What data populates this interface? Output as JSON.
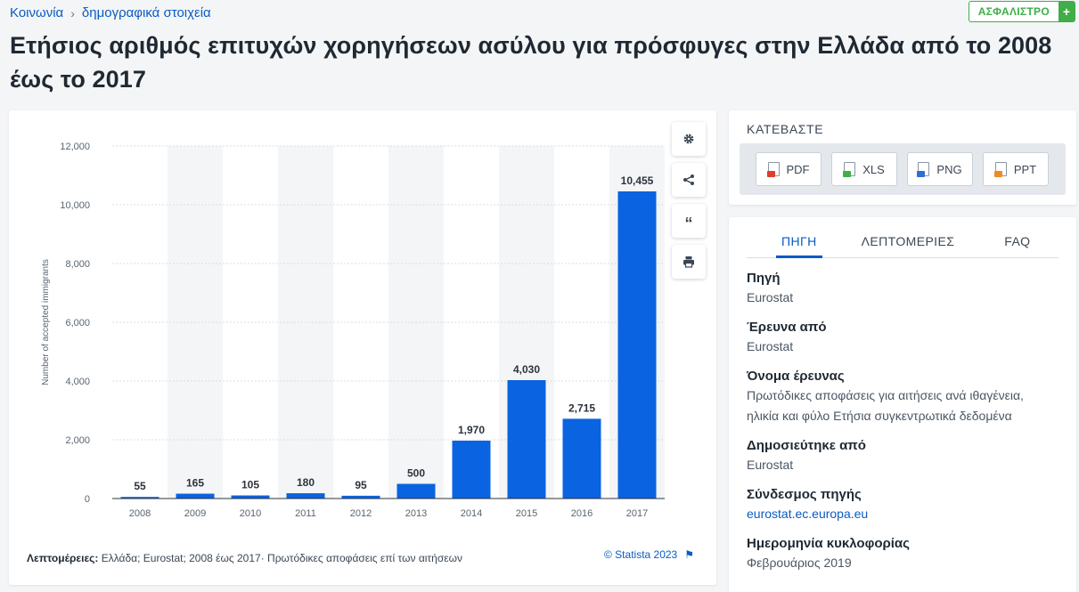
{
  "breadcrumb": {
    "items": [
      "Κοινωνία",
      "δημογραφικά στοιχεία"
    ],
    "separator": "›"
  },
  "premium_badge": {
    "label": "ΑΣΦΑΛΙΣΤΡΟ",
    "plus": "+"
  },
  "page_title": "Ετήσιος αριθμός επιτυχών χορηγήσεων ασύλου για πρόσφυγες στην Ελλάδα από το 2008 έως το 2017",
  "chart_data": {
    "type": "bar",
    "categories": [
      "2008",
      "2009",
      "2010",
      "2011",
      "2012",
      "2013",
      "2014",
      "2015",
      "2016",
      "2017"
    ],
    "values": [
      55,
      165,
      105,
      180,
      95,
      500,
      1970,
      4030,
      2715,
      10455
    ],
    "value_labels": [
      "55",
      "165",
      "105",
      "180",
      "95",
      "500",
      "1,970",
      "4,030",
      "2,715",
      "10,455"
    ],
    "ylabel": "Number of accepted immigrants",
    "xlabel": "",
    "ylim": [
      0,
      12000
    ],
    "yticks": [
      0,
      2000,
      4000,
      6000,
      8000,
      10000,
      12000
    ],
    "ytick_labels": [
      "0",
      "2,000",
      "4,000",
      "6,000",
      "8,000",
      "10,000",
      "12,000"
    ],
    "bar_color": "#0a63e0",
    "stripe_color": "#f4f5f6",
    "grid": true
  },
  "chart_tools": [
    "gear-icon",
    "share-icon",
    "quote-icon",
    "print-icon"
  ],
  "chart_footer": {
    "details_label": "Λεπτομέρειες:",
    "details_text": "Ελλάδα; Eurostat; 2008 έως 2017· Πρωτόδικες αποφάσεις επί των αιτήσεων",
    "copyright": "© Statista 2023",
    "flag_icon": "⚑"
  },
  "download": {
    "title": "ΚΑΤΕΒΑΣΤΕ",
    "buttons": [
      {
        "label": "PDF",
        "color": "#e03c31"
      },
      {
        "label": "XLS",
        "color": "#3fae49"
      },
      {
        "label": "PNG",
        "color": "#2f6fd1"
      },
      {
        "label": "PPT",
        "color": "#f08a24"
      }
    ]
  },
  "source_tabs": [
    "ΠΗΓΗ",
    "ΛΕΠΤΟΜΕΡΙΕΣ",
    "FAQ"
  ],
  "source_items": [
    {
      "key": "Πηγή",
      "value": "Eurostat"
    },
    {
      "key": "Έρευνα από",
      "value": "Eurostat"
    },
    {
      "key": "Όνομα έρευνας",
      "value": "Πρωτόδικες αποφάσεις για αιτήσεις ανά ιθαγένεια, ηλικία και φύλο Ετήσια συγκεντρωτικά δεδομένα"
    },
    {
      "key": "Δημοσιεύτηκε από",
      "value": "Eurostat"
    },
    {
      "key": "Σύνδεσμος πηγής",
      "value": "eurostat.ec.europa.eu"
    },
    {
      "key": "Ημερομηνία κυκλοφορίας",
      "value": "Φεβρουάριος 2019"
    }
  ]
}
